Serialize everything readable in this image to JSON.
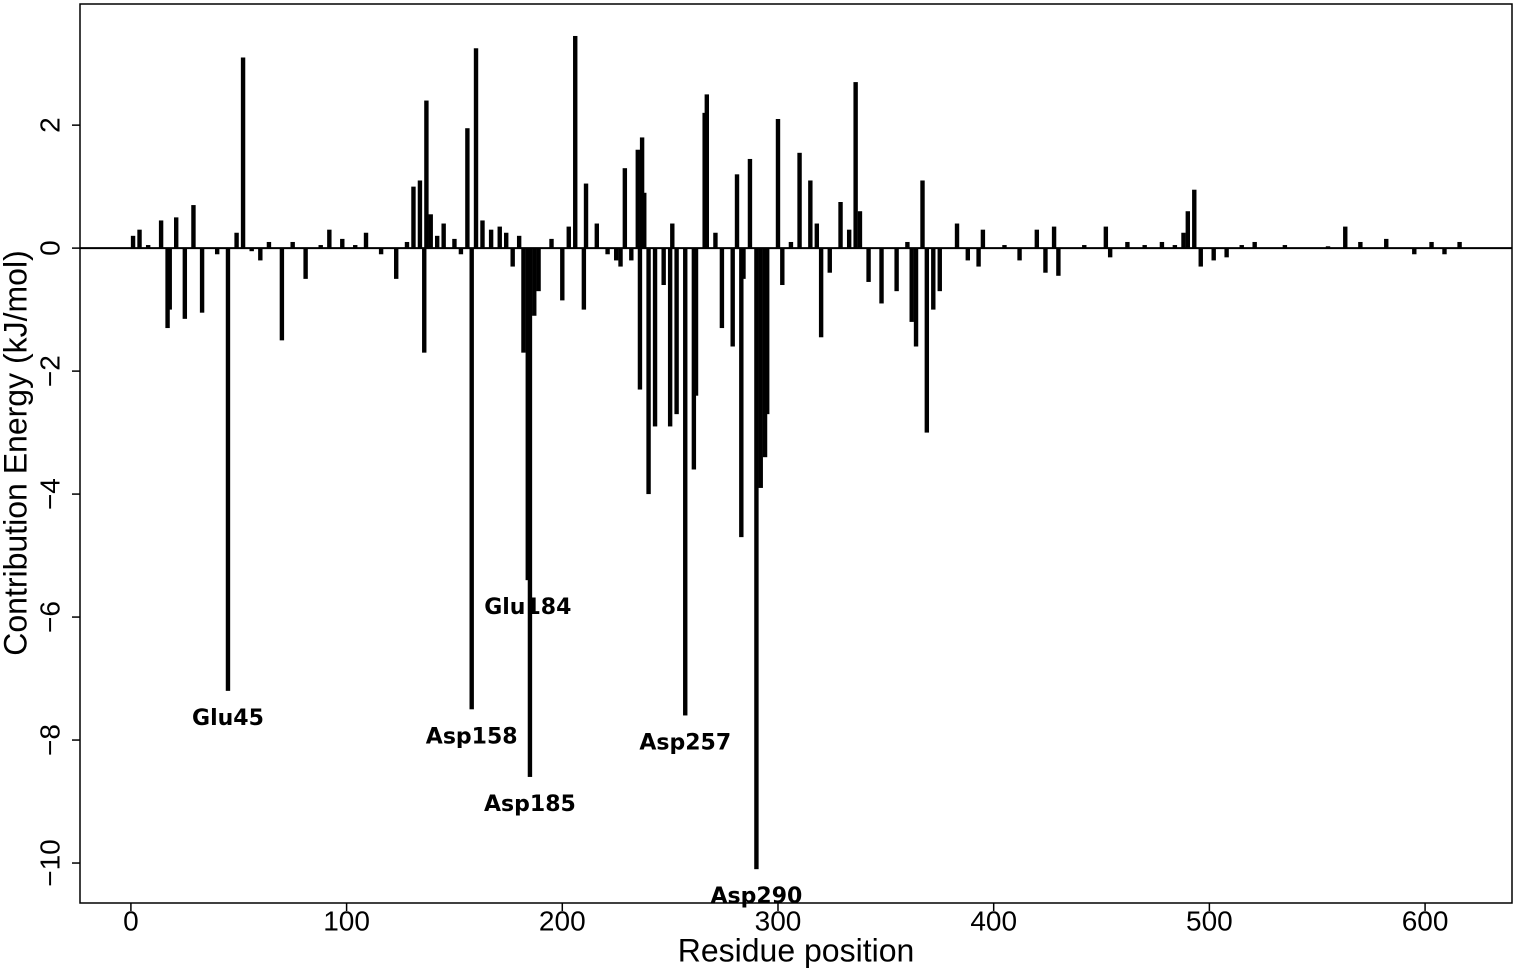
{
  "chart_data": {
    "type": "bar",
    "x_label": "Residue position",
    "y_label": "Contribution Energy (kJ/mol)",
    "color": "#000000",
    "x": [
      1,
      4,
      8,
      14,
      17,
      18,
      21,
      25,
      29,
      33,
      40,
      45,
      49,
      52,
      56,
      60,
      64,
      70,
      75,
      81,
      88,
      92,
      98,
      104,
      109,
      116,
      123,
      128,
      131,
      134,
      136,
      137,
      139,
      142,
      145,
      150,
      153,
      156,
      158,
      160,
      163,
      167,
      171,
      174,
      177,
      180,
      182,
      184,
      185,
      187,
      189,
      195,
      200,
      203,
      206,
      210,
      211,
      216,
      221,
      225,
      227,
      229,
      232,
      235,
      236,
      237,
      238,
      240,
      243,
      247,
      250,
      251,
      253,
      257,
      261,
      262,
      266,
      267,
      271,
      274,
      279,
      281,
      283,
      284,
      287,
      290,
      292,
      294,
      295,
      300,
      302,
      306,
      310,
      315,
      318,
      320,
      324,
      329,
      333,
      336,
      338,
      342,
      348,
      355,
      360,
      362,
      364,
      367,
      369,
      372,
      375,
      383,
      388,
      393,
      395,
      405,
      412,
      420,
      424,
      428,
      430,
      442,
      452,
      454,
      462,
      470,
      478,
      484,
      488,
      490,
      493,
      496,
      502,
      508,
      515,
      521,
      535,
      555,
      563,
      570,
      582,
      595,
      603,
      609,
      616
    ],
    "values": [
      0.2,
      0.3,
      0.05,
      0.45,
      -1.3,
      -1.0,
      0.5,
      -1.15,
      0.7,
      -1.05,
      -0.1,
      -7.2,
      0.25,
      3.1,
      -0.05,
      -0.2,
      0.1,
      -1.5,
      0.1,
      -0.5,
      0.05,
      0.3,
      0.15,
      0.05,
      0.25,
      -0.1,
      -0.5,
      0.1,
      1.0,
      1.1,
      -1.7,
      2.4,
      0.55,
      0.2,
      0.4,
      0.15,
      -0.1,
      1.95,
      -7.5,
      3.25,
      0.45,
      0.3,
      0.35,
      0.25,
      -0.3,
      0.2,
      -1.7,
      -5.4,
      -8.6,
      -1.1,
      -0.7,
      0.15,
      -0.85,
      0.35,
      3.45,
      -1.0,
      1.05,
      0.4,
      -0.1,
      -0.2,
      -0.3,
      1.3,
      -0.2,
      1.6,
      -2.3,
      1.8,
      0.9,
      -4.0,
      -2.9,
      -0.6,
      -2.9,
      0.4,
      -2.7,
      -7.6,
      -3.6,
      -2.4,
      2.2,
      2.5,
      0.25,
      -1.3,
      -1.6,
      1.2,
      -4.7,
      -0.5,
      1.45,
      -10.1,
      -3.9,
      -3.4,
      -2.7,
      2.1,
      -0.6,
      0.1,
      1.55,
      1.1,
      0.4,
      -1.45,
      -0.4,
      0.75,
      0.3,
      2.7,
      0.6,
      -0.55,
      -0.9,
      -0.7,
      0.1,
      -1.2,
      -1.6,
      1.1,
      -3.0,
      -1.0,
      -0.7,
      0.4,
      -0.2,
      -0.3,
      0.3,
      0.05,
      -0.2,
      0.3,
      -0.4,
      0.35,
      -0.45,
      0.05,
      0.35,
      -0.15,
      0.1,
      0.05,
      0.1,
      0.05,
      0.25,
      0.6,
      0.95,
      -0.3,
      -0.2,
      -0.15,
      0.05,
      0.1,
      0.05,
      0.03,
      0.35,
      0.1,
      0.15,
      -0.1,
      0.1,
      -0.1,
      0.1
    ],
    "reference_line": 0,
    "annotations": [
      {
        "text": "Glu45",
        "x": 45
      },
      {
        "text": "Asp158",
        "x": 158
      },
      {
        "text": "Glu184",
        "x": 184
      },
      {
        "text": "Asp185",
        "x": 185
      },
      {
        "text": "Asp257",
        "x": 257
      },
      {
        "text": "Asp290",
        "x": 290
      }
    ],
    "xlim": [
      -23.6,
      640.3
    ],
    "ylim": [
      -10.65,
      3.97
    ],
    "xticks": [
      0,
      100,
      200,
      300,
      400,
      500,
      600
    ],
    "yticks": [
      {
        "value": -10,
        "label": "−10"
      },
      {
        "value": -8,
        "label": "−8"
      },
      {
        "value": -6,
        "label": "−6"
      },
      {
        "value": -4,
        "label": "−4"
      },
      {
        "value": -2,
        "label": "−2"
      },
      0,
      2
    ]
  }
}
